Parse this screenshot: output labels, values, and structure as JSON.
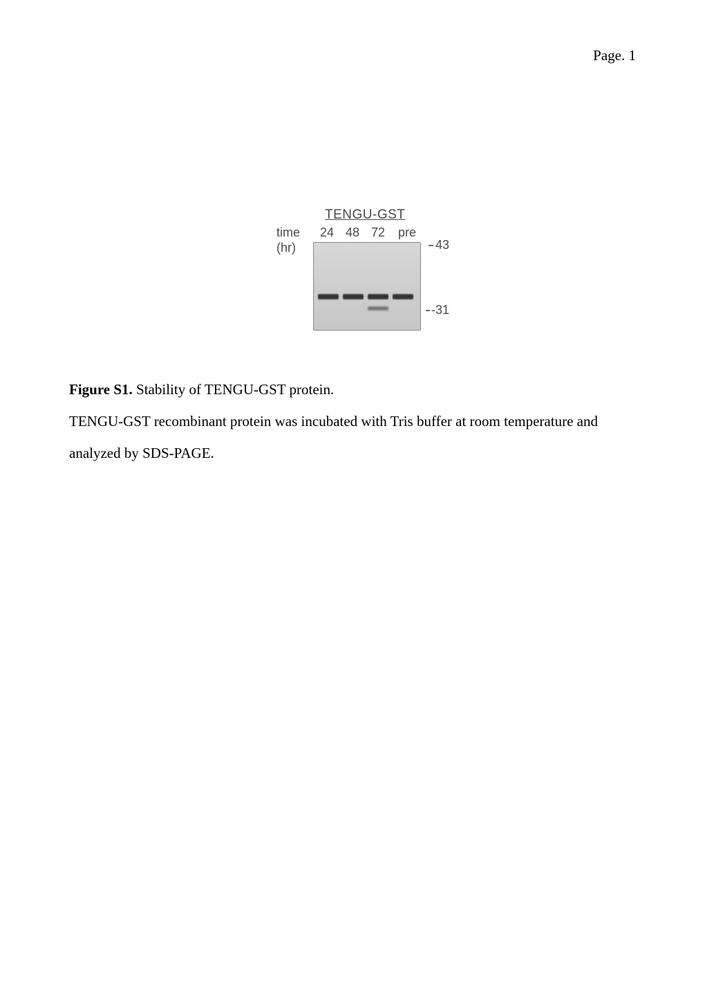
{
  "page": {
    "header": "Page. 1"
  },
  "figure": {
    "gel_title": "TENGU-GST",
    "time_label": "time",
    "hr_label": "(hr)",
    "lanes": [
      "24",
      "48",
      "72",
      "pre"
    ],
    "markers": {
      "top": "43",
      "bottom": "-31"
    },
    "colors": {
      "background": "#ffffff",
      "text": "#000000",
      "gel_text": "#4a4a4a",
      "gel_bg_start": "#d8d8d8",
      "gel_bg_end": "#c8c8c8",
      "gel_border": "#888888",
      "band_dark": "#2a2a2a",
      "band_faint": "#6a6a6a"
    }
  },
  "caption": {
    "title": "Figure S1.",
    "title_text": " Stability of TENGU-GST protein.",
    "body": "TENGU-GST recombinant protein was incubated with Tris buffer at room temperature and analyzed by SDS-PAGE."
  },
  "typography": {
    "body_font": "Times New Roman",
    "figure_font": "Arial",
    "body_fontsize": 21,
    "figure_fontsize": 18,
    "line_height": 2.2
  }
}
